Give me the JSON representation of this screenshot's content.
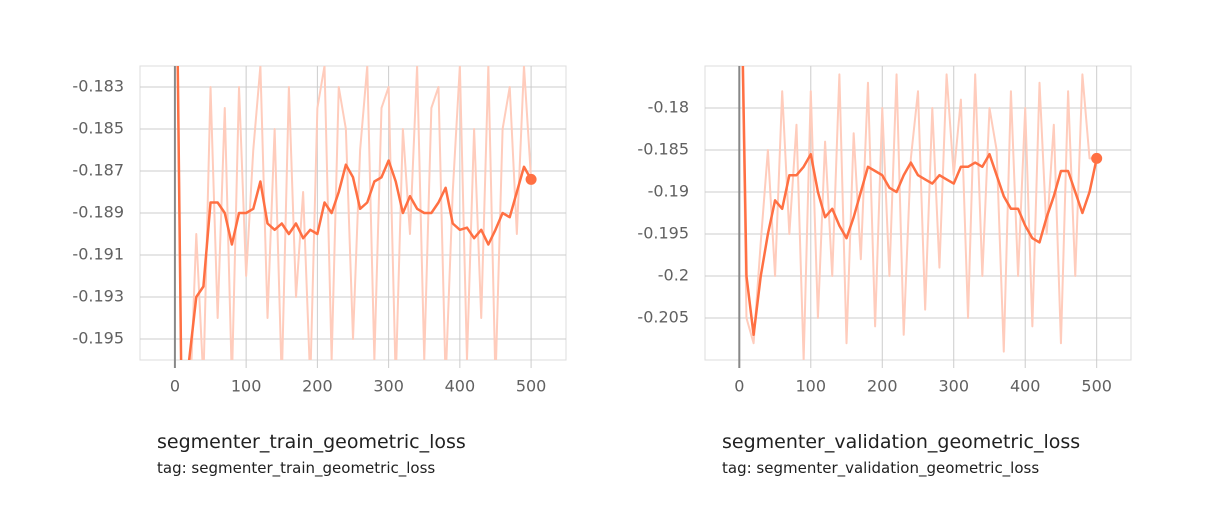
{
  "chart_data": [
    {
      "type": "line",
      "title": "segmenter_train_geometric_loss",
      "subtitle": "tag: segmenter_train_geometric_loss",
      "x": [
        0,
        10,
        20,
        30,
        40,
        50,
        60,
        70,
        80,
        90,
        100,
        110,
        120,
        130,
        140,
        150,
        160,
        170,
        180,
        190,
        200,
        210,
        220,
        230,
        240,
        250,
        260,
        270,
        280,
        290,
        300,
        310,
        320,
        330,
        340,
        350,
        360,
        370,
        380,
        390,
        400,
        410,
        420,
        430,
        440,
        450,
        460,
        470,
        480,
        490,
        500
      ],
      "series": [
        {
          "color": "#ffccbc",
          "values": [
            -0.17,
            -0.2,
            -0.199,
            -0.19,
            -0.197,
            -0.183,
            -0.194,
            -0.184,
            -0.197,
            -0.183,
            -0.192,
            -0.186,
            -0.182,
            -0.194,
            -0.185,
            -0.197,
            -0.183,
            -0.193,
            -0.188,
            -0.197,
            -0.184,
            -0.182,
            -0.196,
            -0.183,
            -0.185,
            -0.195,
            -0.186,
            -0.182,
            -0.196,
            -0.184,
            -0.183,
            -0.197,
            -0.185,
            -0.19,
            -0.182,
            -0.196,
            -0.184,
            -0.183,
            -0.197,
            -0.188,
            -0.182,
            -0.196,
            -0.185,
            -0.194,
            -0.182,
            -0.197,
            -0.185,
            -0.183,
            -0.19,
            -0.182,
            -0.1874
          ]
        },
        {
          "color": "#ff7043",
          "values": [
            -0.17,
            -0.2,
            -0.196,
            -0.193,
            -0.1925,
            -0.1885,
            -0.1885,
            -0.189,
            -0.1905,
            -0.189,
            -0.189,
            -0.1888,
            -0.1875,
            -0.1895,
            -0.1898,
            -0.1895,
            -0.19,
            -0.1895,
            -0.1902,
            -0.1898,
            -0.19,
            -0.1885,
            -0.189,
            -0.188,
            -0.1867,
            -0.1873,
            -0.1888,
            -0.1885,
            -0.1875,
            -0.1873,
            -0.1865,
            -0.1875,
            -0.189,
            -0.1882,
            -0.1888,
            -0.189,
            -0.189,
            -0.1885,
            -0.1878,
            -0.1895,
            -0.1898,
            -0.1897,
            -0.1902,
            -0.1898,
            -0.1905,
            -0.1898,
            -0.189,
            -0.1892,
            -0.188,
            -0.1868,
            -0.1874
          ]
        }
      ],
      "xlim": [
        -49,
        549
      ],
      "xticks": [
        0,
        100,
        200,
        300,
        400,
        500
      ],
      "ylim": [
        -0.196,
        -0.182
      ],
      "yticks": [
        -0.183,
        -0.185,
        -0.187,
        -0.189,
        -0.191,
        -0.193,
        -0.195
      ],
      "grid": true
    },
    {
      "type": "line",
      "title": "segmenter_validation_geometric_loss",
      "subtitle": "tag: segmenter_validation_geometric_loss",
      "x": [
        0,
        10,
        20,
        30,
        40,
        50,
        60,
        70,
        80,
        90,
        100,
        110,
        120,
        130,
        140,
        150,
        160,
        170,
        180,
        190,
        200,
        210,
        220,
        230,
        240,
        250,
        260,
        270,
        280,
        290,
        300,
        310,
        320,
        330,
        340,
        350,
        360,
        370,
        380,
        390,
        400,
        410,
        420,
        430,
        440,
        450,
        460,
        470,
        480,
        490,
        500
      ],
      "series": [
        {
          "color": "#ffccbc",
          "values": [
            -0.15,
            -0.205,
            -0.208,
            -0.196,
            -0.185,
            -0.2,
            -0.178,
            -0.195,
            -0.182,
            -0.21,
            -0.178,
            -0.205,
            -0.184,
            -0.2,
            -0.176,
            -0.208,
            -0.183,
            -0.198,
            -0.177,
            -0.206,
            -0.18,
            -0.2,
            -0.176,
            -0.207,
            -0.186,
            -0.178,
            -0.204,
            -0.18,
            -0.199,
            -0.176,
            -0.188,
            -0.179,
            -0.205,
            -0.176,
            -0.2,
            -0.18,
            -0.185,
            -0.209,
            -0.178,
            -0.2,
            -0.18,
            -0.206,
            -0.177,
            -0.195,
            -0.182,
            -0.208,
            -0.178,
            -0.2,
            -0.176,
            -0.186,
            -0.186
          ]
        },
        {
          "color": "#ff7043",
          "values": [
            -0.15,
            -0.2,
            -0.207,
            -0.2,
            -0.195,
            -0.191,
            -0.192,
            -0.188,
            -0.188,
            -0.187,
            -0.1855,
            -0.19,
            -0.193,
            -0.192,
            -0.194,
            -0.1955,
            -0.193,
            -0.19,
            -0.187,
            -0.1875,
            -0.188,
            -0.1895,
            -0.19,
            -0.188,
            -0.1865,
            -0.188,
            -0.1885,
            -0.189,
            -0.188,
            -0.1885,
            -0.189,
            -0.187,
            -0.187,
            -0.1865,
            -0.187,
            -0.1855,
            -0.188,
            -0.1905,
            -0.192,
            -0.192,
            -0.194,
            -0.1955,
            -0.196,
            -0.193,
            -0.1905,
            -0.1875,
            -0.1875,
            -0.19,
            -0.1925,
            -0.19,
            -0.186
          ]
        }
      ],
      "xlim": [
        -48,
        548
      ],
      "xticks": [
        0,
        100,
        200,
        300,
        400,
        500
      ],
      "ylim": [
        -0.21,
        -0.175
      ],
      "yticks": [
        -0.18,
        -0.185,
        -0.19,
        -0.195,
        -0.2,
        -0.205
      ],
      "grid": true
    }
  ]
}
